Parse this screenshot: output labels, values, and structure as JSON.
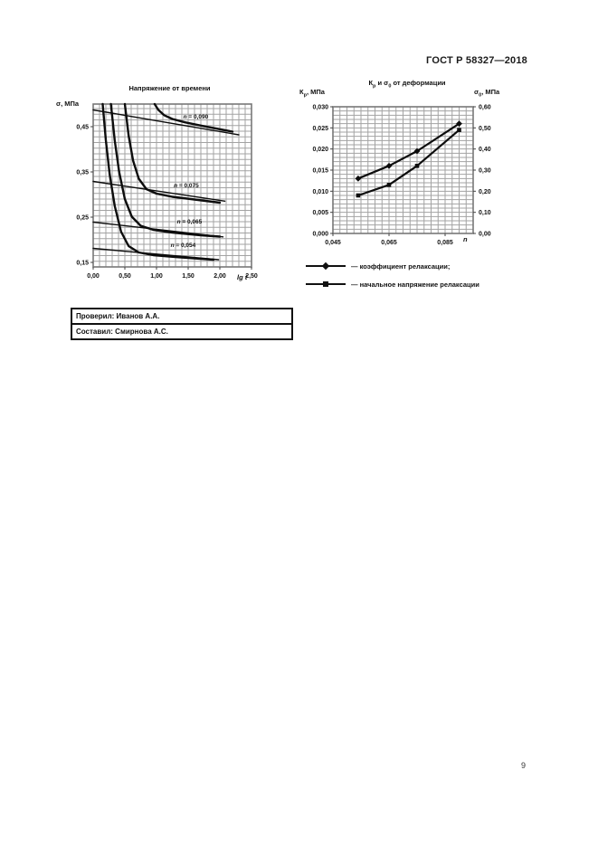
{
  "page": {
    "header": "ГОСТ Р 58327—2018",
    "page_number": "9"
  },
  "stamp_table": {
    "rows": [
      "Проверил: Иванов А.А.",
      "Составил: Смирнова А.С."
    ]
  },
  "legend": {
    "items": [
      {
        "marker": "diamond",
        "label": "— коэффициент релаксации;"
      },
      {
        "marker": "square",
        "label": "— начальное напряжение релаксации"
      }
    ]
  },
  "chart_data": [
    {
      "type": "line",
      "title": "Напряжение от времени",
      "ylabel": "σ, МПа",
      "xlabel": "lg t",
      "xlim": [
        0,
        2.5
      ],
      "ylim": [
        0.14,
        0.5
      ],
      "grid": {
        "x_step": 0.1,
        "y_step": 0.0125,
        "on": true
      },
      "xticks": [
        {
          "v": 0.0,
          "label": "0,00"
        },
        {
          "v": 0.5,
          "label": "0,50"
        },
        {
          "v": 1.0,
          "label": "1,00"
        },
        {
          "v": 1.5,
          "label": "1,50"
        },
        {
          "v": 2.0,
          "label": "2,00"
        },
        {
          "v": 2.5,
          "label": "2,50"
        }
      ],
      "yticks": [
        {
          "v": 0.45,
          "label": "0,45"
        },
        {
          "v": 0.35,
          "label": "0,35"
        },
        {
          "v": 0.25,
          "label": "0,25"
        },
        {
          "v": 0.15,
          "label": "0,15"
        }
      ],
      "series": [
        {
          "name": "relaxation-curve-n-0,090",
          "width": 2.4,
          "points": [
            [
              0.97,
              0.5
            ],
            [
              1.03,
              0.487
            ],
            [
              1.12,
              0.4755
            ],
            [
              1.25,
              0.467
            ],
            [
              1.45,
              0.4595
            ],
            [
              1.7,
              0.4525
            ],
            [
              2.0,
              0.4445
            ],
            [
              2.2,
              0.439
            ]
          ]
        },
        {
          "name": "asymptote-n-0,090",
          "width": 1.4,
          "points": [
            [
              0,
              0.487
            ],
            [
              2.3,
              0.432
            ]
          ]
        },
        {
          "name": "relaxation-curve-n-0,075",
          "width": 2.4,
          "points": [
            [
              0.5,
              0.5
            ],
            [
              0.56,
              0.43
            ],
            [
              0.63,
              0.375
            ],
            [
              0.72,
              0.335
            ],
            [
              0.84,
              0.312
            ],
            [
              1.0,
              0.302
            ],
            [
              1.25,
              0.295
            ],
            [
              1.6,
              0.289
            ],
            [
              2.0,
              0.282
            ]
          ]
        },
        {
          "name": "asymptote-n-0,075",
          "width": 1.4,
          "points": [
            [
              0,
              0.329
            ],
            [
              2.08,
              0.2855
            ]
          ]
        },
        {
          "name": "relaxation-curve-n-0,065",
          "width": 2.4,
          "points": [
            [
              0.28,
              0.5
            ],
            [
              0.34,
              0.42
            ],
            [
              0.41,
              0.35
            ],
            [
              0.5,
              0.29
            ],
            [
              0.61,
              0.251
            ],
            [
              0.75,
              0.231
            ],
            [
              0.95,
              0.222
            ],
            [
              1.25,
              0.216
            ],
            [
              1.7,
              0.21
            ],
            [
              2.0,
              0.207
            ]
          ]
        },
        {
          "name": "asymptote-n-0,065",
          "width": 1.4,
          "points": [
            [
              0,
              0.239
            ],
            [
              2.05,
              0.2065
            ]
          ]
        },
        {
          "name": "relaxation-curve-n-0,054",
          "width": 2.4,
          "points": [
            [
              0.15,
              0.5
            ],
            [
              0.2,
              0.42
            ],
            [
              0.26,
              0.345
            ],
            [
              0.34,
              0.275
            ],
            [
              0.44,
              0.218
            ],
            [
              0.56,
              0.186
            ],
            [
              0.72,
              0.172
            ],
            [
              0.95,
              0.166
            ],
            [
              1.3,
              0.162
            ],
            [
              1.9,
              0.156
            ]
          ]
        },
        {
          "name": "asymptote-n-0,054",
          "width": 1.4,
          "points": [
            [
              0,
              0.181
            ],
            [
              1.98,
              0.156
            ]
          ]
        }
      ],
      "annotations": [
        {
          "text": "n = 0,090",
          "x": 1.62,
          "y": 0.468
        },
        {
          "text": "n = 0,075",
          "x": 1.47,
          "y": 0.316
        },
        {
          "text": "n = 0,065",
          "x": 1.52,
          "y": 0.236
        },
        {
          "text": "n = 0,054",
          "x": 1.42,
          "y": 0.184
        }
      ]
    },
    {
      "type": "line",
      "title": "К{р} и σ{0} от деформации",
      "ylabel": "К{р}, МПа",
      "ylabel_right": "σ{0}, МПа",
      "xlabel": "n",
      "xlim": [
        0.045,
        0.095
      ],
      "ylim": [
        0,
        0.03
      ],
      "ylim_right": [
        0,
        0.6
      ],
      "grid": {
        "x_step": 0.0025,
        "y_step": 0.001,
        "on": true
      },
      "xticks": [
        {
          "v": 0.045,
          "label": "0,045"
        },
        {
          "v": 0.065,
          "label": "0,065"
        },
        {
          "v": 0.085,
          "label": "0,085"
        }
      ],
      "yticks": [
        {
          "v": 0.03,
          "label": "0,030"
        },
        {
          "v": 0.025,
          "label": "0,025"
        },
        {
          "v": 0.02,
          "label": "0,020"
        },
        {
          "v": 0.015,
          "label": "0,015"
        },
        {
          "v": 0.01,
          "label": "0,010"
        },
        {
          "v": 0.005,
          "label": "0,005"
        },
        {
          "v": 0.0,
          "label": "0,000"
        }
      ],
      "yticks_right": [
        {
          "v": 0.6,
          "label": "0,60"
        },
        {
          "v": 0.5,
          "label": "0,50"
        },
        {
          "v": 0.4,
          "label": "0,40"
        },
        {
          "v": 0.3,
          "label": "0,30"
        },
        {
          "v": 0.2,
          "label": "0,20"
        },
        {
          "v": 0.1,
          "label": "0,10"
        },
        {
          "v": 0.0,
          "label": "0,00"
        }
      ],
      "x": [
        0.054,
        0.065,
        0.075,
        0.09
      ],
      "series": [
        {
          "name": "коэффициент релаксации",
          "marker": "diamond",
          "width": 2.2,
          "values": [
            0.013,
            0.016,
            0.0195,
            0.026
          ]
        },
        {
          "name": "начальное напряжение релаксации",
          "marker": "square",
          "width": 2.2,
          "axis": "right",
          "values": [
            0.18,
            0.23,
            0.32,
            0.49
          ]
        }
      ]
    }
  ]
}
